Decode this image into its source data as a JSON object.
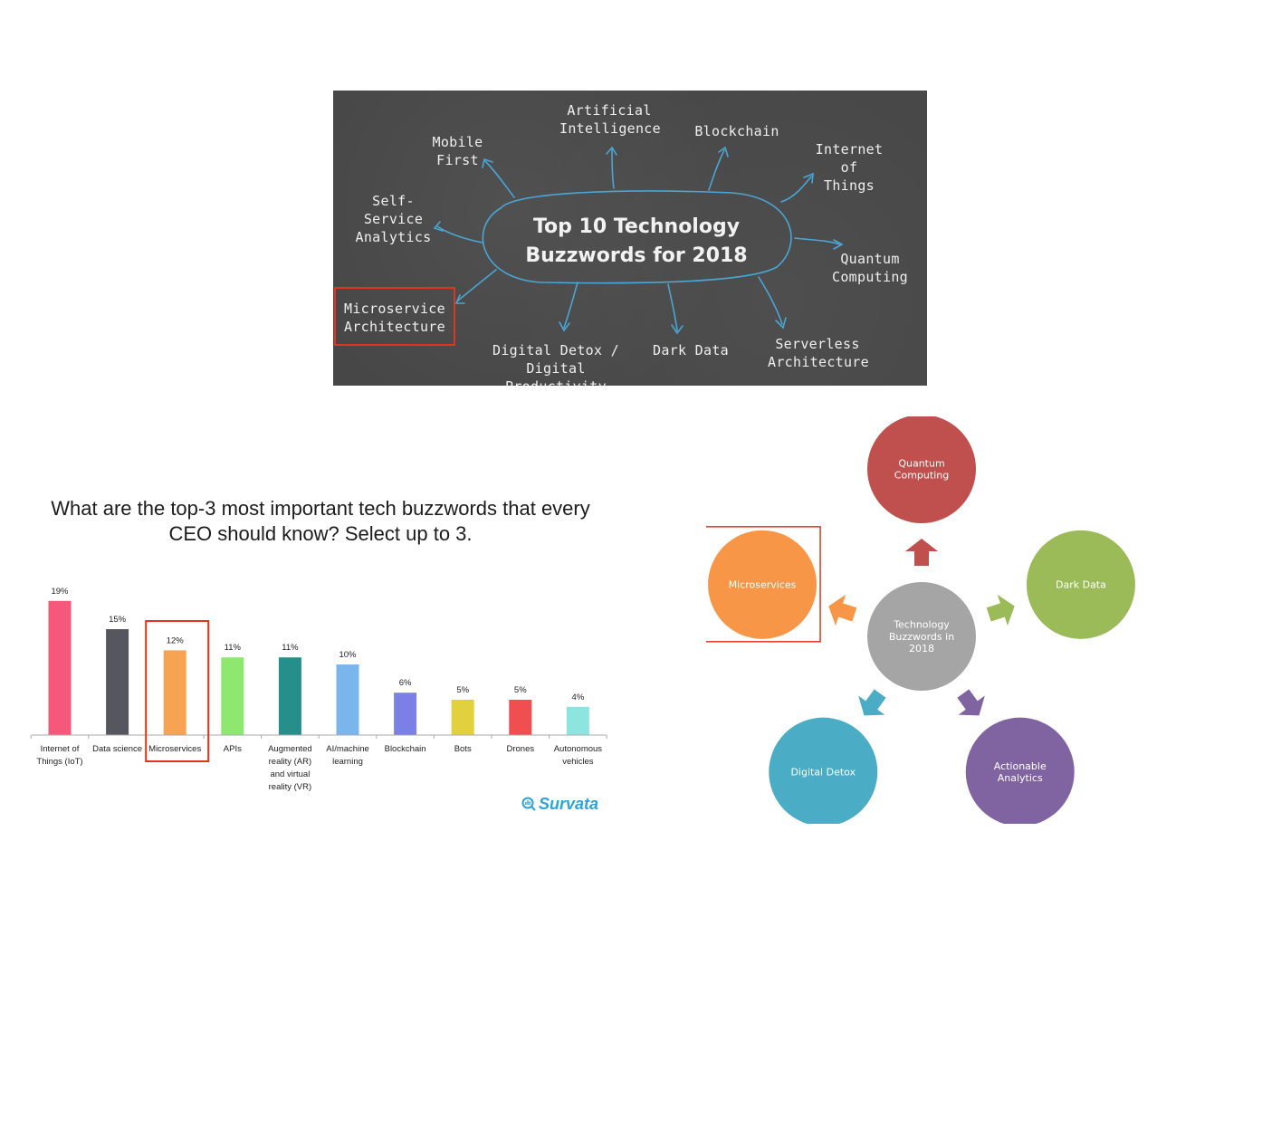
{
  "board": {
    "title": "Top 10 Technology\nBuzzwords for 2018",
    "items": {
      "ai": "Artificial\nIntelligence",
      "mobile": "Mobile\nFirst",
      "blockchain": "Blockchain",
      "iot": "Internet\nof Things",
      "selfservice": "Self-Service\nAnalytics",
      "quantum": "Quantum\nComputing",
      "microservice": "Microservice\nArchitecture",
      "detox": "Digital Detox /\nDigital Productivity",
      "darkdata": "Dark Data",
      "serverless": "Serverless\nArchitecture"
    },
    "highlight_color": "#e0341c"
  },
  "survey": {
    "title": "What are the top-3 most important tech buzzwords that every CEO should know? Select up to 3.",
    "brand": "Survata",
    "highlight_color": "#e0341c"
  },
  "chart_data": {
    "type": "bar",
    "title": "What are the top-3 most important tech buzzwords that every CEO should know? Select up to 3.",
    "categories": [
      [
        "Internet of",
        "Things (IoT)"
      ],
      [
        "Data science"
      ],
      [
        "Microservices"
      ],
      [
        "APIs"
      ],
      [
        "Augmented",
        "reality (AR)",
        "and virtual",
        "reality (VR)"
      ],
      [
        "AI/machine",
        "learning"
      ],
      [
        "Blockchain"
      ],
      [
        "Bots"
      ],
      [
        "Drones"
      ],
      [
        "Autonomous",
        "vehicles"
      ]
    ],
    "values": [
      19,
      15,
      12,
      11,
      11,
      10,
      6,
      5,
      5,
      4
    ],
    "value_labels": [
      "19%",
      "15%",
      "12%",
      "11%",
      "11%",
      "10%",
      "6%",
      "5%",
      "5%",
      "4%"
    ],
    "colors": [
      "#f5587b",
      "#56565e",
      "#f7a354",
      "#8ee870",
      "#268f8c",
      "#7ab6ec",
      "#7b80e6",
      "#e2d13c",
      "#f04e50",
      "#8ee5e0"
    ],
    "highlight_index": 2,
    "ylim": [
      0,
      20
    ],
    "xlabel": "",
    "ylabel": "",
    "grid": false,
    "legend": "none"
  },
  "cycle": {
    "center": "Technology\nBuzzwords in\n2018",
    "nodes": [
      {
        "label": "Quantum\nComputing",
        "color": "#c0504d"
      },
      {
        "label": "Dark Data",
        "color": "#9bbb59"
      },
      {
        "label": "Actionable\nAnalytics",
        "color": "#8064a2"
      },
      {
        "label": "Digital Detox",
        "color": "#4bacc6"
      },
      {
        "label": "Microservices",
        "color": "#f79646"
      }
    ],
    "center_color": "#a5a5a5",
    "highlight_index": 4,
    "highlight_color": "#e0341c"
  }
}
